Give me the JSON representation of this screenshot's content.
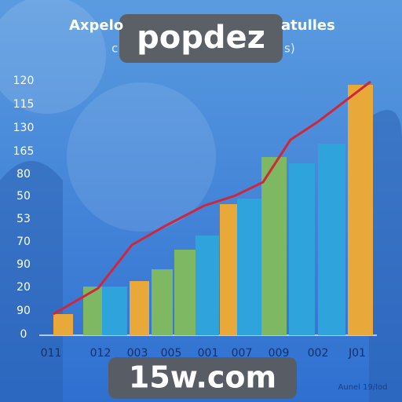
{
  "title_left": "Axpelo",
  "title_right": "atulles",
  "subtitle_left": "c",
  "subtitle_right": "s)",
  "y_axis_labels": [
    "120",
    "115",
    "130",
    "165",
    "80",
    "50",
    "53",
    "70",
    "90",
    "20",
    "90",
    "0"
  ],
  "x_axis_labels": [
    "011",
    "012",
    "003",
    "005",
    "001",
    "007",
    "009",
    "002",
    "J01"
  ],
  "watermark_top": "popdez",
  "watermark_bottom": "15w.com",
  "footnote": "Aunel 19/lod"
}
